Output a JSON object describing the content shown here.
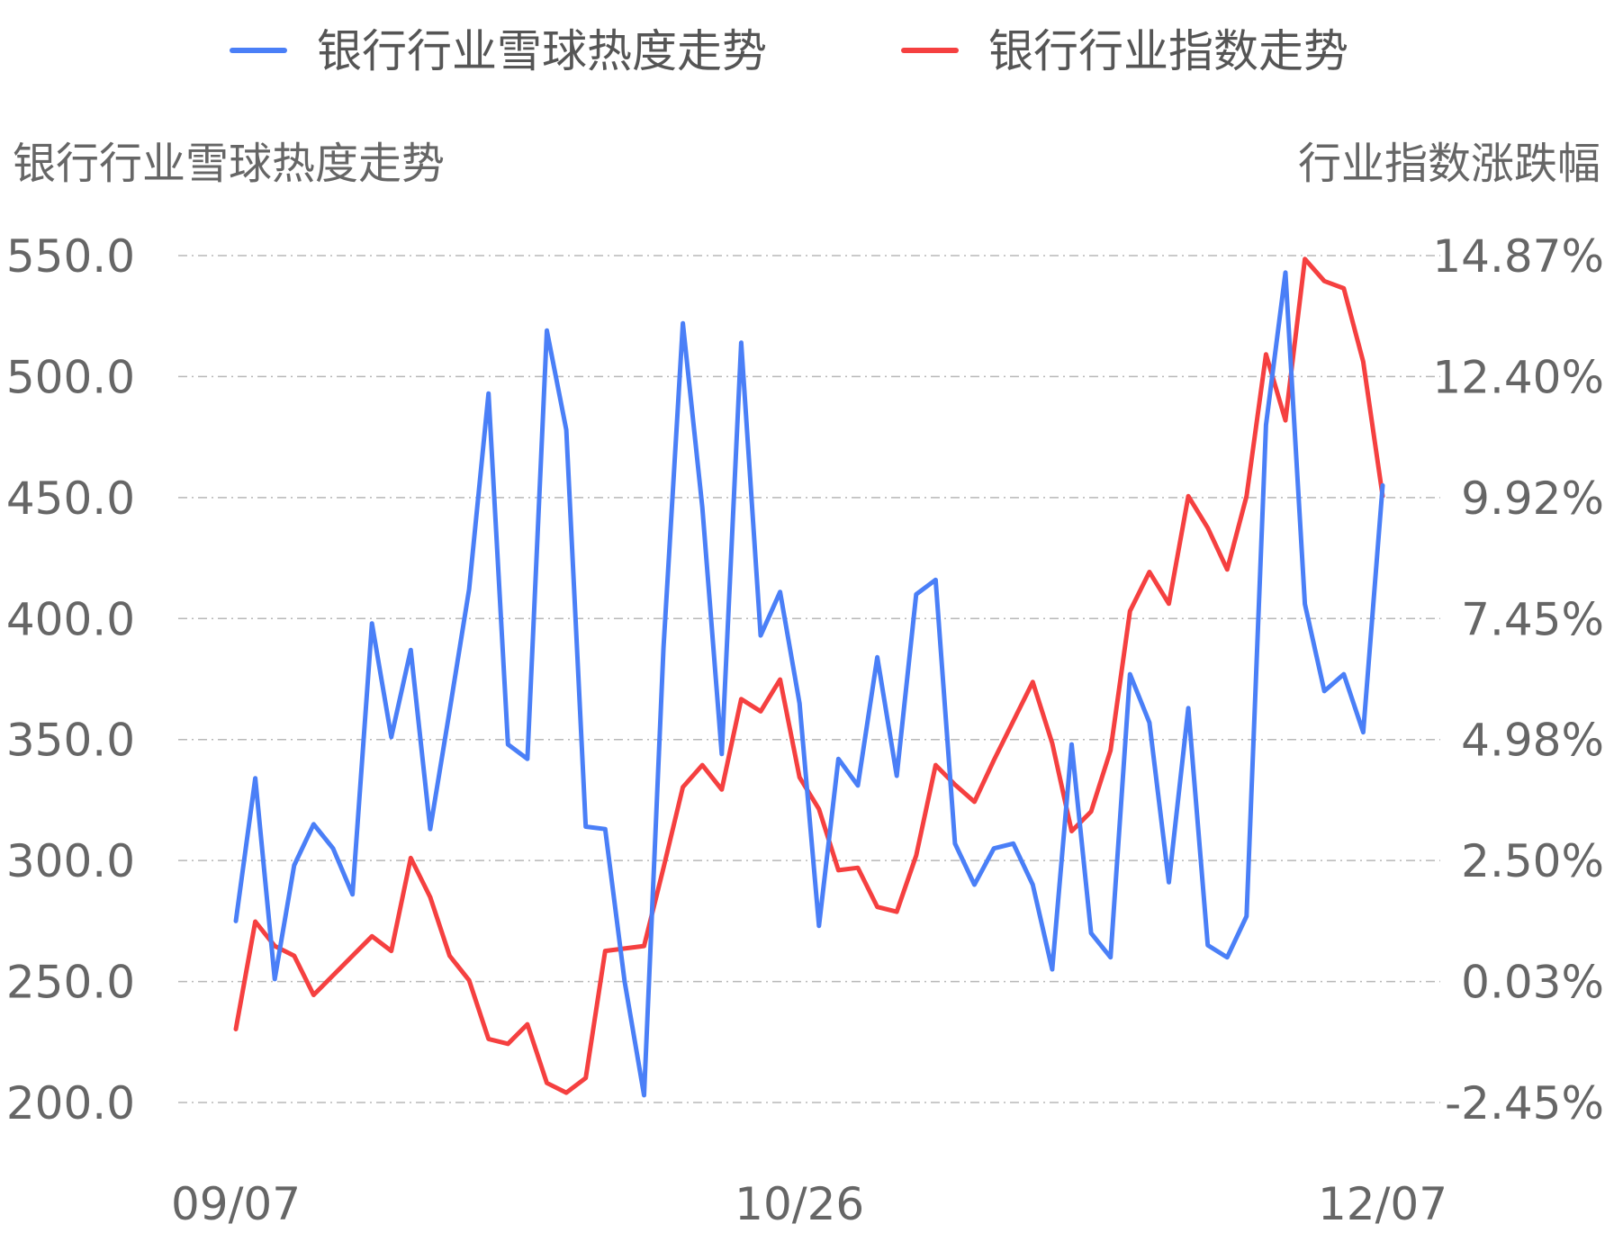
{
  "colors": {
    "heat": "#4a7ff7",
    "index": "#f54040",
    "grid": "#b8b8b8",
    "text": "#666666"
  },
  "legend": {
    "heat_label": "银行行业雪球热度走势",
    "index_label": "银行行业指数走势"
  },
  "chart_data": {
    "type": "line",
    "left_axis_title": "银行行业雪球热度走势",
    "right_axis_title": "行业指数涨跌幅",
    "left_ticks": [
      "550.0",
      "500.0",
      "450.0",
      "400.0",
      "350.0",
      "300.0",
      "250.0",
      "200.0"
    ],
    "right_ticks": [
      "14.87%",
      "12.40%",
      "9.92%",
      "7.45%",
      "4.98%",
      "2.50%",
      "0.03%",
      "-2.45%"
    ],
    "left_ylim": [
      200,
      550
    ],
    "right_ylim": [
      -2.45,
      14.87
    ],
    "x_tick_labels": [
      "09/07",
      "10/26",
      "12/07"
    ],
    "x_tick_indices": [
      0,
      29,
      59
    ],
    "grid": true,
    "legend_position": "top-center",
    "series": [
      {
        "name": "银行行业雪球热度走势",
        "axis": "left",
        "values": [
          275,
          334,
          251,
          298,
          315,
          305,
          286,
          398,
          351,
          387,
          313,
          362,
          412,
          493,
          348,
          342,
          519,
          478,
          314,
          313,
          250,
          203,
          388,
          522,
          446,
          344,
          514,
          393,
          411,
          365,
          273,
          342,
          331,
          384,
          335,
          410,
          416,
          307,
          290,
          305,
          307,
          290,
          255,
          348,
          270,
          260,
          377,
          357,
          291,
          363,
          265,
          260,
          277,
          480,
          543,
          406,
          370,
          377,
          353,
          455
        ]
      },
      {
        "name": "银行行业指数走势",
        "axis": "right",
        "values": [
          -0.95,
          1.25,
          0.75,
          0.55,
          -0.25,
          0.15,
          0.55,
          0.95,
          0.65,
          2.55,
          1.75,
          0.55,
          0.05,
          -1.15,
          -1.25,
          -0.85,
          -2.05,
          -2.25,
          -1.95,
          0.65,
          0.7,
          0.75,
          2.35,
          4.0,
          4.45,
          3.95,
          5.8,
          5.55,
          6.2,
          4.2,
          3.55,
          2.3,
          2.35,
          1.55,
          1.45,
          2.6,
          4.45,
          4.05,
          3.7,
          4.55,
          5.35,
          6.15,
          4.9,
          3.1,
          3.5,
          4.75,
          7.6,
          8.4,
          7.75,
          9.95,
          9.3,
          8.45,
          9.95,
          12.85,
          11.5,
          14.8,
          14.35,
          14.2,
          12.7,
          9.95
        ]
      }
    ]
  }
}
